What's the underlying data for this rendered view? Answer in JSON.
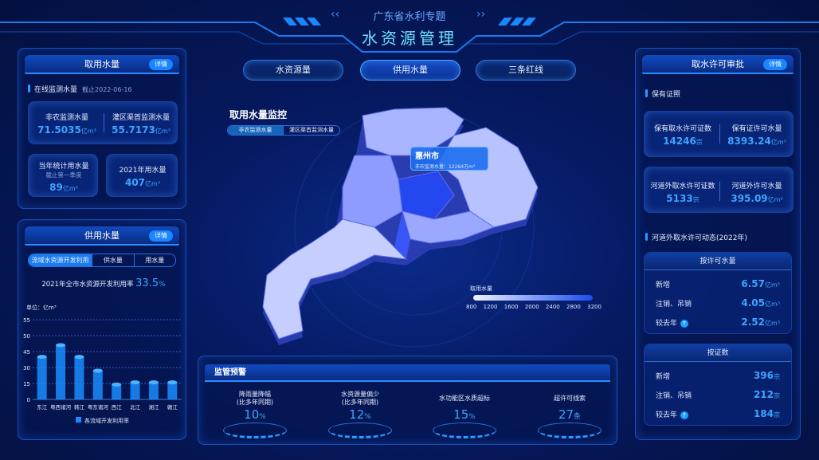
{
  "header": {
    "subtitle": "广东省水利专题",
    "title": "水资源管理"
  },
  "nav": [
    {
      "label": "水资源量",
      "active": false
    },
    {
      "label": "供用水量",
      "active": true
    },
    {
      "label": "三条红线",
      "active": false
    }
  ],
  "left_top": {
    "title": "取用水量",
    "detail": "详情",
    "section": "在线监测水量",
    "section_date": "截止2022-06-16",
    "stats": [
      {
        "label": "非农监测水量",
        "value": "71.5035",
        "unit": "亿m³"
      },
      {
        "label": "灌区渠首监测水量",
        "value": "55.7173",
        "unit": "亿m³"
      }
    ],
    "year_stat": {
      "label": "当年统计用水量",
      "sub": "截止第一季度",
      "value": "89",
      "unit": "亿m³"
    },
    "y2021": {
      "label": "2021年用水量",
      "value": "407",
      "unit": "亿m³"
    }
  },
  "left_bottom": {
    "title": "供用水量",
    "detail": "详情",
    "tabs": [
      "流域水资源开发利用",
      "供水量",
      "用水量"
    ],
    "rate_label": "2021年全市水资源开发利用率",
    "rate_value": "33.5",
    "rate_unit": "%"
  },
  "chart_data": {
    "type": "bar",
    "ylabel": "单位：亿m³",
    "yticks": [
      0,
      15,
      30,
      45,
      50,
      55
    ],
    "categories": [
      "东江",
      "粤西诸河",
      "韩江",
      "粤东诸河",
      "西江",
      "北江",
      "湘江",
      "赣江"
    ],
    "series": [
      {
        "name": "各流域开发利用率",
        "values": [
          40,
          47,
          40,
          27,
          14,
          16,
          16,
          16
        ]
      }
    ],
    "color": "#1a8cff",
    "grid": true,
    "legend": "bottom"
  },
  "map": {
    "title": "取用水量监控",
    "tabs": [
      "非农监测水量",
      "灌区渠首监测水量"
    ],
    "tooltip_city": "惠州市",
    "tooltip_text": "非农监测水量：12264万m³",
    "legend_title": "取用水量",
    "legend_ticks": [
      "800",
      "1200",
      "1600",
      "2000",
      "2400",
      "2800",
      "3200"
    ]
  },
  "bottom": {
    "title": "监管预警",
    "items": [
      {
        "label": "降雨量降幅",
        "sub": "(比多年同期)",
        "value": "10",
        "unit": "%"
      },
      {
        "label": "水资源量偏少",
        "sub": "(比多年同期)",
        "value": "12",
        "unit": "%"
      },
      {
        "label": "水功能区水质超标",
        "sub": "",
        "value": "15",
        "unit": "%"
      },
      {
        "label": "超许可线索",
        "sub": "",
        "value": "27",
        "unit": "条"
      }
    ]
  },
  "right": {
    "title": "取水许可审批",
    "detail": "详情",
    "section1": "保有证照",
    "stats1": [
      {
        "label": "保有取水许可证数",
        "value": "14246",
        "unit": "宗"
      },
      {
        "label": "保有证许可水量",
        "value": "8393.24",
        "unit": "亿m³"
      }
    ],
    "stats2": [
      {
        "label": "河道外取水许可证数",
        "value": "5133",
        "unit": "宗"
      },
      {
        "label": "河道外许可水量",
        "value": "395.09",
        "unit": "亿m³"
      }
    ],
    "section2": "河道外取水许可动态(2022年)",
    "by_volume": {
      "title": "按许可水量",
      "rows": [
        {
          "label": "新增",
          "value": "6.57",
          "unit": "亿m³"
        },
        {
          "label": "注销、吊销",
          "value": "4.05",
          "unit": "亿m³"
        },
        {
          "label": "较去年",
          "value": "2.52",
          "unit": "亿m³",
          "up": true
        }
      ]
    },
    "by_count": {
      "title": "按证数",
      "rows": [
        {
          "label": "新增",
          "value": "396",
          "unit": "宗"
        },
        {
          "label": "注销、吊销",
          "value": "212",
          "unit": "宗"
        },
        {
          "label": "较去年",
          "value": "184",
          "unit": "宗",
          "up": true
        }
      ]
    }
  }
}
